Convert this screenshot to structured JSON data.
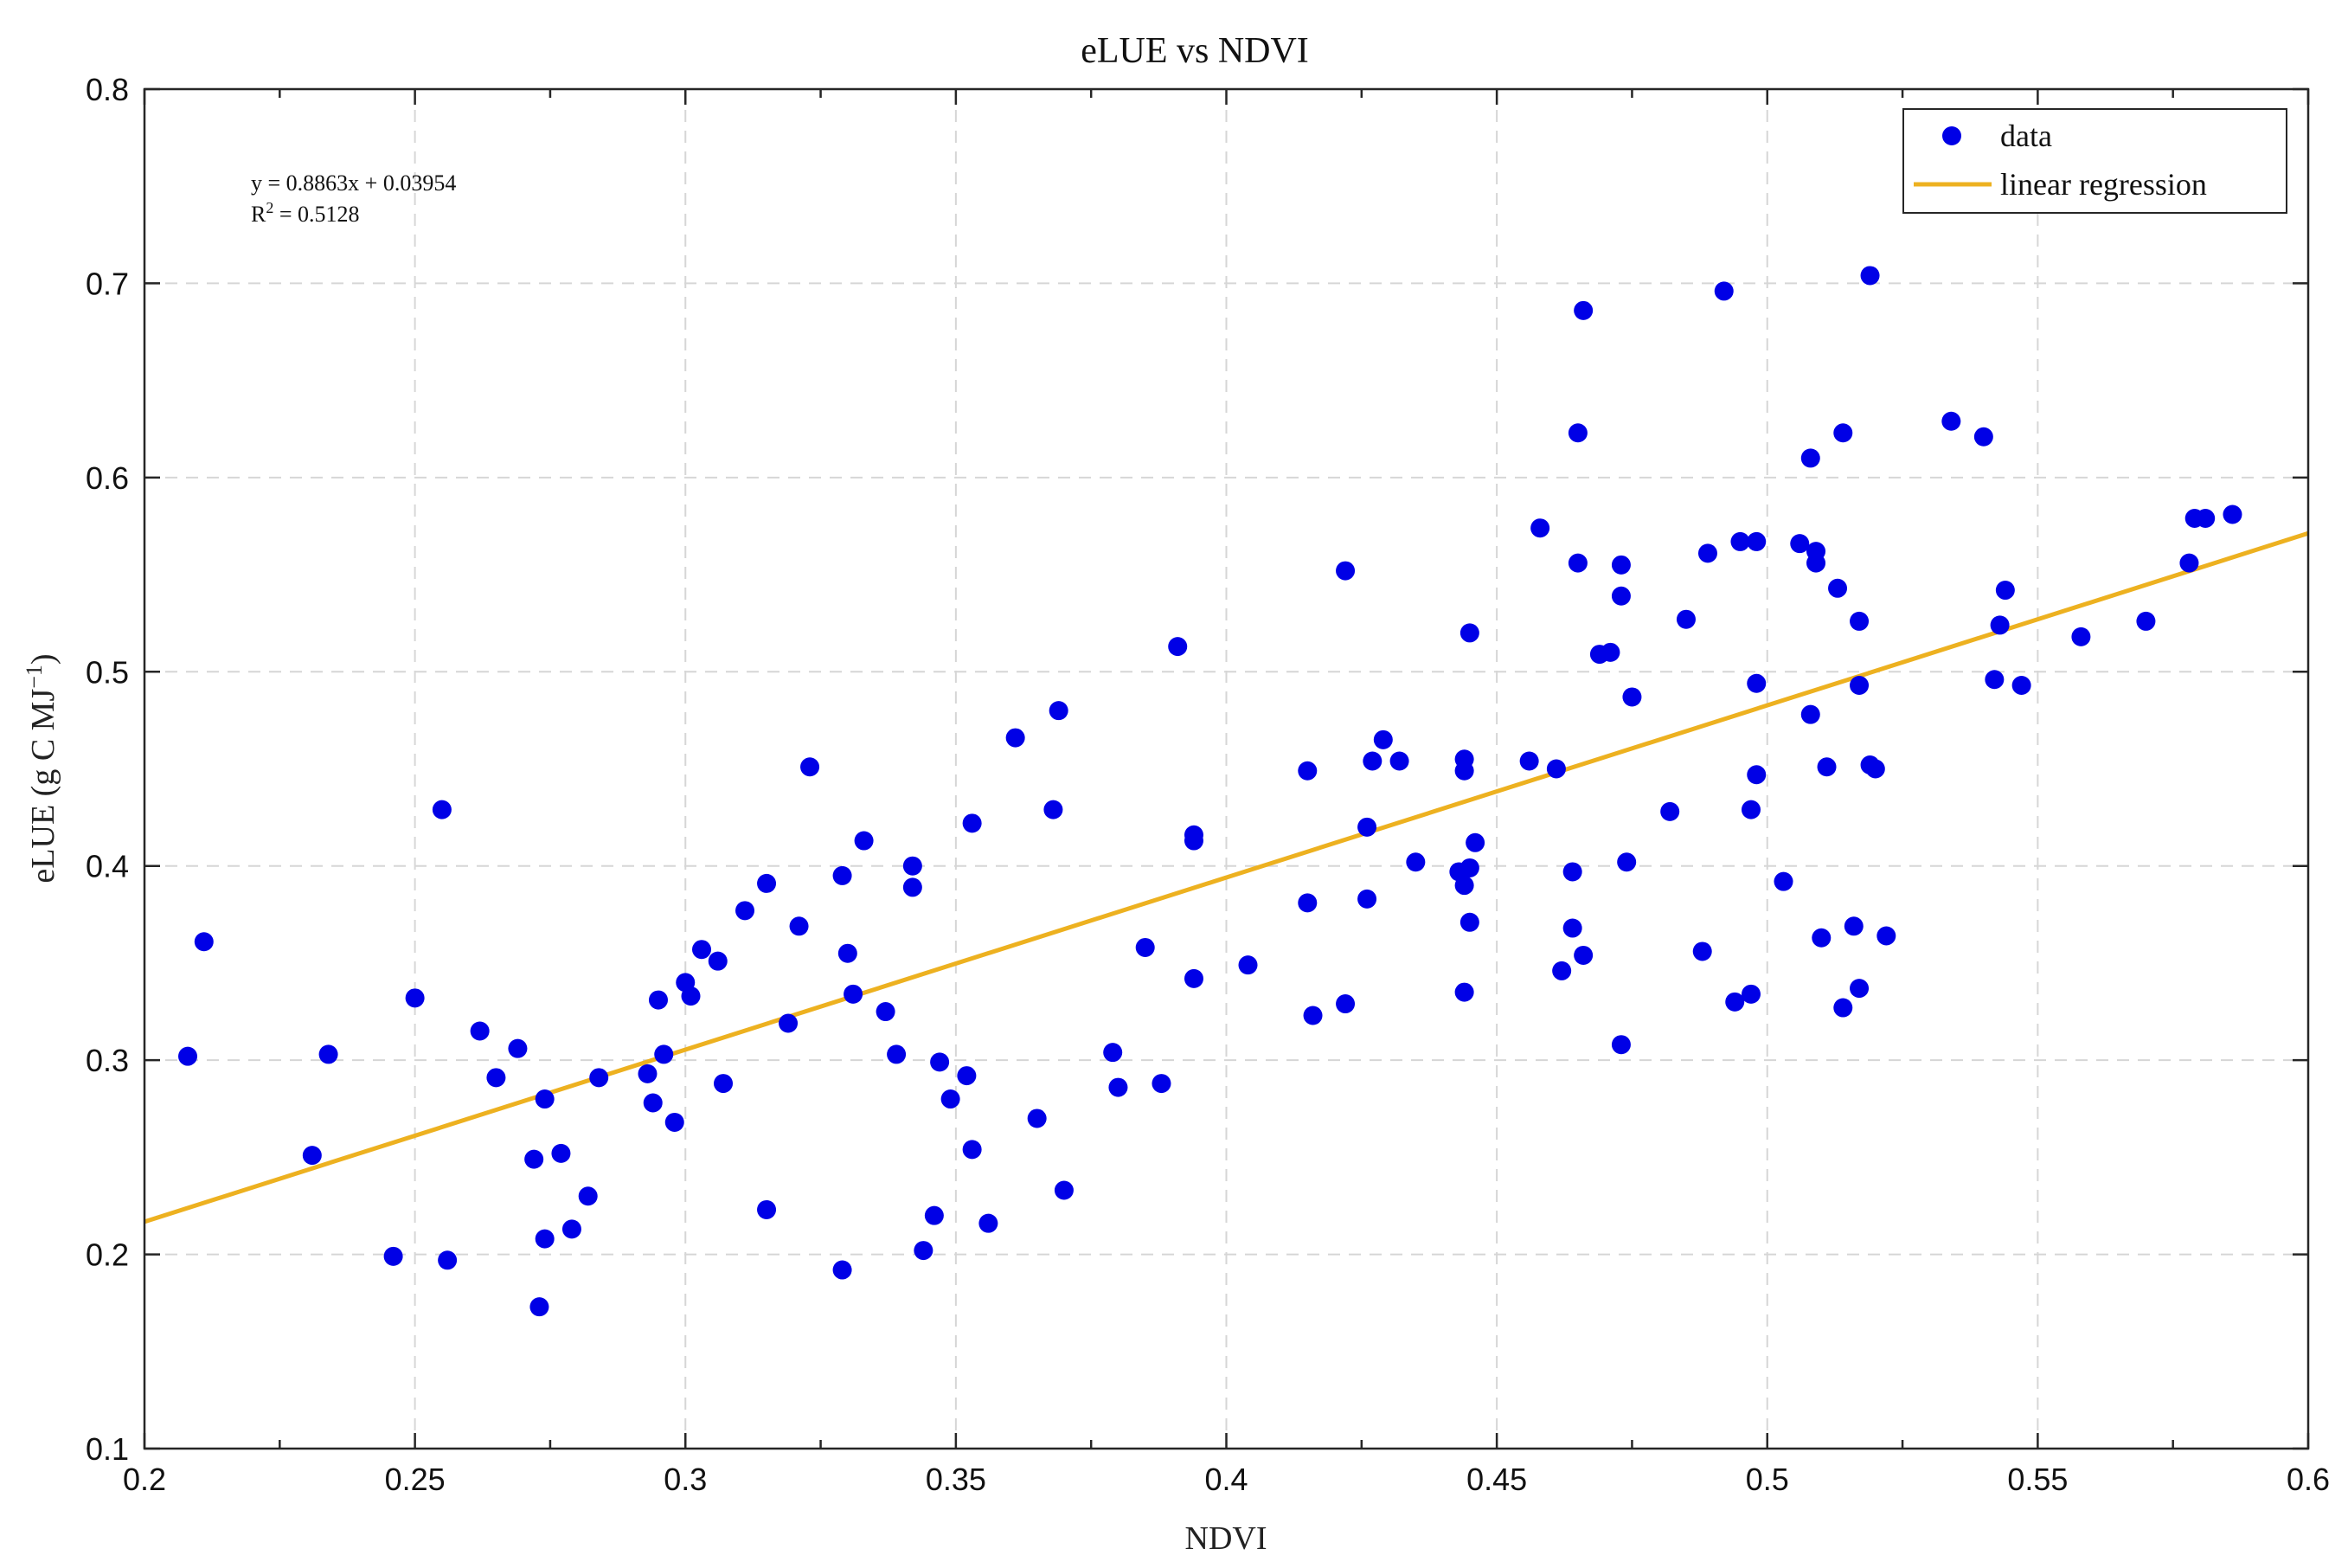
{
  "chart_data": {
    "type": "scatter",
    "title": "eLUE vs NDVI",
    "xlabel": "NDVI",
    "ylabel_main": "eLUE (g C MJ",
    "ylabel_sup": "−1",
    "ylabel_close": ")",
    "xlim": [
      0.2,
      0.6
    ],
    "ylim": [
      0.1,
      0.8
    ],
    "x_ticks": [
      0.2,
      0.25,
      0.3,
      0.35,
      0.4,
      0.45,
      0.5,
      0.55,
      0.6
    ],
    "x_tick_labels": [
      "0.2",
      "0.25",
      "0.3",
      "0.35",
      "0.4",
      "0.45",
      "0.5",
      "0.55",
      "0.6"
    ],
    "y_ticks": [
      0.1,
      0.2,
      0.3,
      0.4,
      0.5,
      0.6,
      0.7,
      0.8
    ],
    "y_tick_labels": [
      "0.1",
      "0.2",
      "0.3",
      "0.4",
      "0.5",
      "0.6",
      "0.7",
      "0.8"
    ],
    "grid": true,
    "legend_position": "top-right",
    "annotation": {
      "equation": "y = 0.8863x + 0.03954",
      "r2_prefix": "R",
      "r2_sup": "2",
      "r2_value": " = 0.5128"
    },
    "regression": {
      "slope": 0.8863,
      "intercept": 0.03954
    },
    "series": [
      {
        "name": "data",
        "color": "#0000e6",
        "kind": "scatter",
        "points": [
          [
            0.208,
            0.302
          ],
          [
            0.211,
            0.361
          ],
          [
            0.231,
            0.251
          ],
          [
            0.234,
            0.303
          ],
          [
            0.246,
            0.199
          ],
          [
            0.25,
            0.332
          ],
          [
            0.255,
            0.429
          ],
          [
            0.256,
            0.197
          ],
          [
            0.262,
            0.315
          ],
          [
            0.265,
            0.291
          ],
          [
            0.269,
            0.306
          ],
          [
            0.272,
            0.249
          ],
          [
            0.273,
            0.173
          ],
          [
            0.274,
            0.208
          ],
          [
            0.274,
            0.28
          ],
          [
            0.277,
            0.252
          ],
          [
            0.279,
            0.213
          ],
          [
            0.282,
            0.23
          ],
          [
            0.284,
            0.291
          ],
          [
            0.293,
            0.293
          ],
          [
            0.294,
            0.278
          ],
          [
            0.295,
            0.331
          ],
          [
            0.296,
            0.303
          ],
          [
            0.298,
            0.268
          ],
          [
            0.3,
            0.34
          ],
          [
            0.301,
            0.333
          ],
          [
            0.303,
            0.357
          ],
          [
            0.306,
            0.351
          ],
          [
            0.307,
            0.288
          ],
          [
            0.311,
            0.377
          ],
          [
            0.315,
            0.391
          ],
          [
            0.315,
            0.223
          ],
          [
            0.319,
            0.319
          ],
          [
            0.321,
            0.369
          ],
          [
            0.323,
            0.451
          ],
          [
            0.329,
            0.395
          ],
          [
            0.329,
            0.192
          ],
          [
            0.33,
            0.355
          ],
          [
            0.331,
            0.334
          ],
          [
            0.333,
            0.413
          ],
          [
            0.337,
            0.325
          ],
          [
            0.339,
            0.303
          ],
          [
            0.342,
            0.4
          ],
          [
            0.342,
            0.389
          ],
          [
            0.344,
            0.202
          ],
          [
            0.346,
            0.22
          ],
          [
            0.347,
            0.299
          ],
          [
            0.349,
            0.28
          ],
          [
            0.352,
            0.292
          ],
          [
            0.353,
            0.254
          ],
          [
            0.353,
            0.422
          ],
          [
            0.356,
            0.216
          ],
          [
            0.361,
            0.466
          ],
          [
            0.365,
            0.27
          ],
          [
            0.368,
            0.429
          ],
          [
            0.369,
            0.48
          ],
          [
            0.37,
            0.233
          ],
          [
            0.379,
            0.304
          ],
          [
            0.38,
            0.286
          ],
          [
            0.385,
            0.358
          ],
          [
            0.388,
            0.288
          ],
          [
            0.391,
            0.513
          ],
          [
            0.394,
            0.416
          ],
          [
            0.394,
            0.413
          ],
          [
            0.394,
            0.342
          ],
          [
            0.404,
            0.349
          ],
          [
            0.415,
            0.381
          ],
          [
            0.415,
            0.449
          ],
          [
            0.416,
            0.323
          ],
          [
            0.422,
            0.552
          ],
          [
            0.422,
            0.329
          ],
          [
            0.426,
            0.383
          ],
          [
            0.426,
            0.42
          ],
          [
            0.427,
            0.454
          ],
          [
            0.429,
            0.465
          ],
          [
            0.432,
            0.454
          ],
          [
            0.435,
            0.402
          ],
          [
            0.443,
            0.397
          ],
          [
            0.444,
            0.449
          ],
          [
            0.444,
            0.455
          ],
          [
            0.444,
            0.39
          ],
          [
            0.445,
            0.52
          ],
          [
            0.444,
            0.335
          ],
          [
            0.445,
            0.399
          ],
          [
            0.445,
            0.371
          ],
          [
            0.446,
            0.412
          ],
          [
            0.456,
            0.454
          ],
          [
            0.458,
            0.574
          ],
          [
            0.461,
            0.45
          ],
          [
            0.462,
            0.346
          ],
          [
            0.464,
            0.368
          ],
          [
            0.464,
            0.397
          ],
          [
            0.465,
            0.623
          ],
          [
            0.465,
            0.556
          ],
          [
            0.466,
            0.686
          ],
          [
            0.466,
            0.354
          ],
          [
            0.469,
            0.509
          ],
          [
            0.471,
            0.51
          ],
          [
            0.473,
            0.539
          ],
          [
            0.473,
            0.555
          ],
          [
            0.473,
            0.308
          ],
          [
            0.474,
            0.402
          ],
          [
            0.475,
            0.487
          ],
          [
            0.482,
            0.428
          ],
          [
            0.485,
            0.527
          ],
          [
            0.488,
            0.356
          ],
          [
            0.489,
            0.561
          ],
          [
            0.492,
            0.696
          ],
          [
            0.494,
            0.33
          ],
          [
            0.495,
            0.567
          ],
          [
            0.497,
            0.334
          ],
          [
            0.497,
            0.429
          ],
          [
            0.498,
            0.494
          ],
          [
            0.498,
            0.447
          ],
          [
            0.498,
            0.567
          ],
          [
            0.503,
            0.392
          ],
          [
            0.506,
            0.566
          ],
          [
            0.508,
            0.478
          ],
          [
            0.508,
            0.61
          ],
          [
            0.509,
            0.556
          ],
          [
            0.509,
            0.562
          ],
          [
            0.51,
            0.363
          ],
          [
            0.511,
            0.451
          ],
          [
            0.513,
            0.543
          ],
          [
            0.514,
            0.623
          ],
          [
            0.514,
            0.327
          ],
          [
            0.516,
            0.369
          ],
          [
            0.517,
            0.337
          ],
          [
            0.517,
            0.493
          ],
          [
            0.517,
            0.526
          ],
          [
            0.519,
            0.704
          ],
          [
            0.519,
            0.452
          ],
          [
            0.52,
            0.45
          ],
          [
            0.522,
            0.364
          ],
          [
            0.534,
            0.629
          ],
          [
            0.54,
            0.621
          ],
          [
            0.542,
            0.496
          ],
          [
            0.543,
            0.524
          ],
          [
            0.544,
            0.542
          ],
          [
            0.547,
            0.493
          ],
          [
            0.558,
            0.518
          ],
          [
            0.57,
            0.526
          ],
          [
            0.578,
            0.556
          ],
          [
            0.579,
            0.579
          ],
          [
            0.581,
            0.579
          ],
          [
            0.586,
            0.581
          ]
        ]
      },
      {
        "name": "linear regression",
        "color": "#edb120",
        "kind": "line",
        "x_range": [
          0.2,
          0.6
        ]
      }
    ]
  }
}
